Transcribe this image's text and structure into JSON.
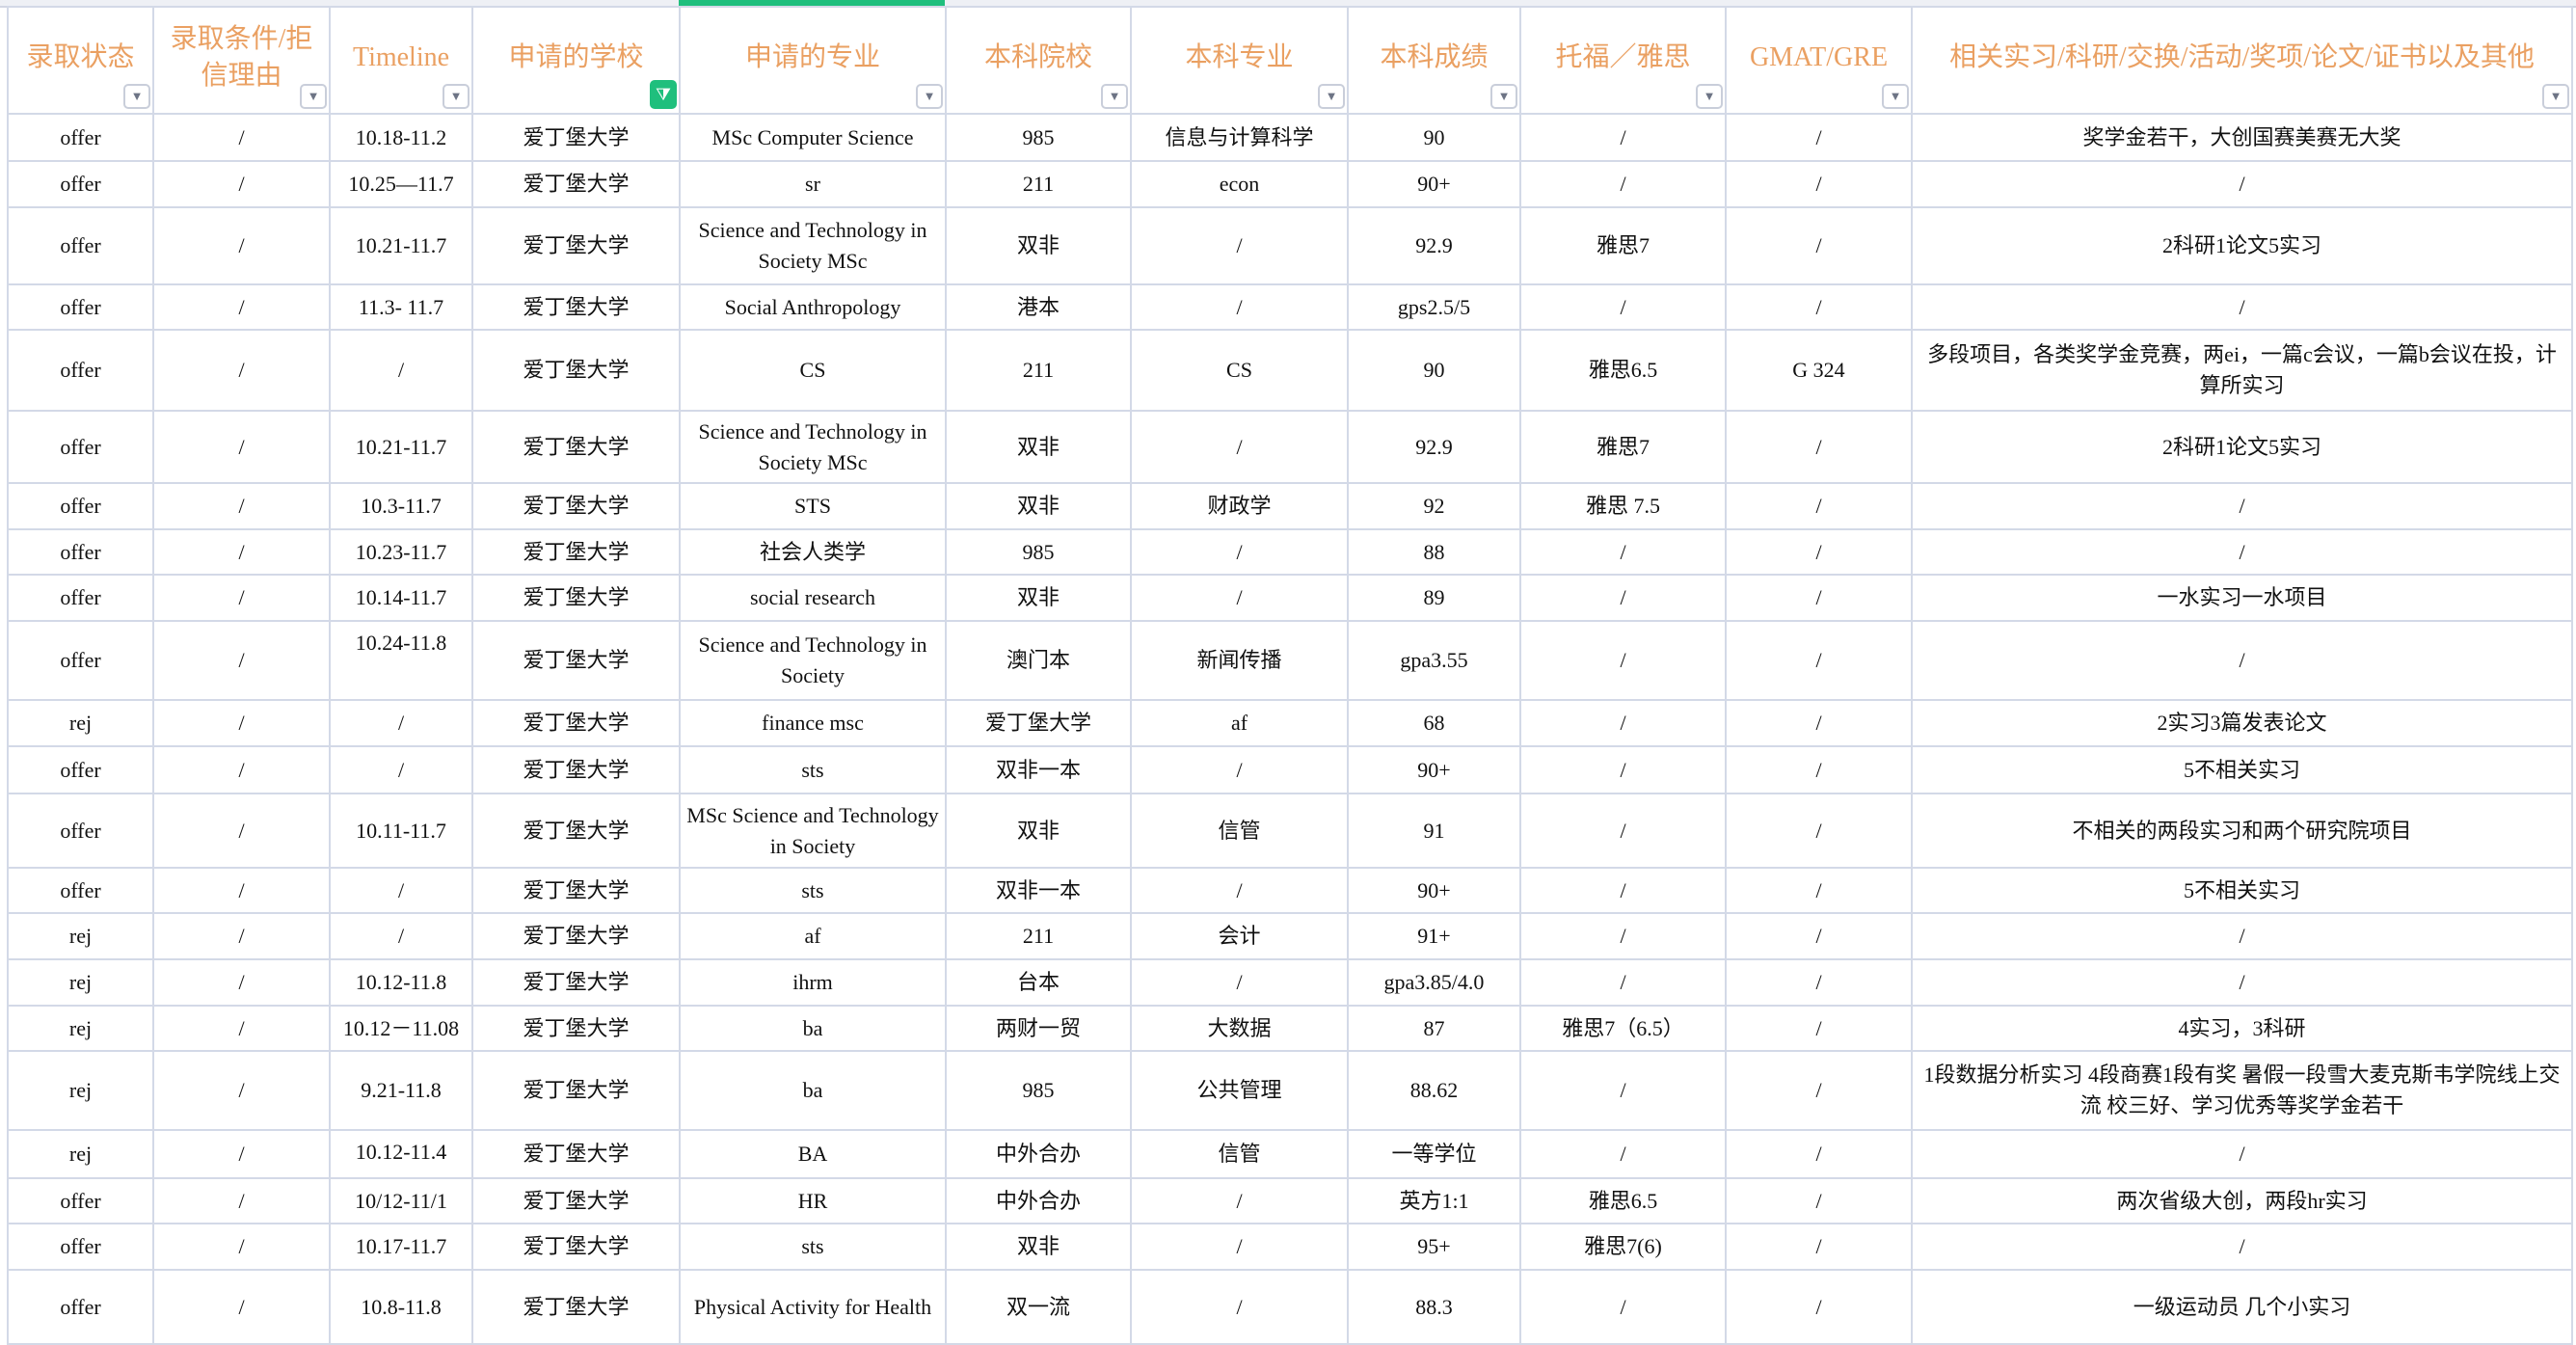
{
  "colors": {
    "header_text": "#eaa062",
    "active_filter": "#1fbf7d",
    "grid": "#d3d9e7",
    "selected_column": "#1fbf7d"
  },
  "columns": [
    {
      "label": "录取状态",
      "filter_icon": "dropdown-arrow-icon",
      "filter_active": false
    },
    {
      "label": "录取条件/拒信理由",
      "filter_icon": "dropdown-arrow-icon",
      "filter_active": false
    },
    {
      "label": "Timeline",
      "filter_icon": "dropdown-arrow-icon",
      "filter_active": false
    },
    {
      "label": "申请的学校",
      "filter_icon": "funnel-icon",
      "filter_active": true
    },
    {
      "label": "申请的专业",
      "filter_icon": "dropdown-arrow-icon",
      "filter_active": false
    },
    {
      "label": "本科院校",
      "filter_icon": "dropdown-arrow-icon",
      "filter_active": false
    },
    {
      "label": "本科专业",
      "filter_icon": "dropdown-arrow-icon",
      "filter_active": false
    },
    {
      "label": "本科成绩",
      "filter_icon": "dropdown-arrow-icon",
      "filter_active": false
    },
    {
      "label": "托福／雅思",
      "filter_icon": "dropdown-arrow-icon",
      "filter_active": false
    },
    {
      "label": "GMAT/GRE",
      "filter_icon": "dropdown-arrow-icon",
      "filter_active": false
    },
    {
      "label": "相关实习/科研/交换/活动/奖项/论文/证书以及其他",
      "filter_icon": "dropdown-arrow-icon",
      "filter_active": false
    }
  ],
  "rows": [
    [
      "offer",
      "/",
      "10.18-11.2",
      "爱丁堡大学",
      "MSc Computer Science",
      "985",
      "信息与计算科学",
      "90",
      "/",
      "/",
      "奖学金若干，大创国赛美赛无大奖"
    ],
    [
      "offer",
      "/",
      "10.25—11.7",
      "爱丁堡大学",
      "sr",
      "211",
      "econ",
      "90+",
      "/",
      "/",
      "/"
    ],
    [
      "offer",
      "/",
      "10.21-11.7",
      "爱丁堡大学",
      "Science and Technology in Society MSc",
      "双非",
      "/",
      "92.9",
      "雅思7",
      "/",
      "2科研1论文5实习"
    ],
    [
      "offer",
      "/",
      "11.3- 11.7",
      "爱丁堡大学",
      "Social Anthropology",
      "港本",
      "/",
      "gps2.5/5",
      "/",
      "/",
      "/"
    ],
    [
      "offer",
      "/",
      "/",
      "爱丁堡大学",
      "CS",
      "211",
      "CS",
      "90",
      "雅思6.5",
      "G 324",
      "多段项目，各类奖学金竞赛，两ei，一篇c会议，一篇b会议在投，计算所实习"
    ],
    [
      "offer",
      "/",
      "10.21-11.7",
      "爱丁堡大学",
      "Science and Technology in Society MSc",
      "双非",
      "/",
      "92.9",
      "雅思7",
      "/",
      "2科研1论文5实习"
    ],
    [
      "offer",
      "/",
      "10.3-11.7",
      "爱丁堡大学",
      "STS",
      "双非",
      "财政学",
      "92",
      "雅思 7.5",
      "/",
      "/"
    ],
    [
      "offer",
      "/",
      "10.23-11.7",
      "爱丁堡大学",
      "社会人类学",
      "985",
      "/",
      "88",
      "/",
      "/",
      "/"
    ],
    [
      "offer",
      "/",
      "10.14-11.7",
      "爱丁堡大学",
      "social research",
      "双非",
      "/",
      "89",
      "/",
      "/",
      "一水实习一水项目"
    ],
    [
      "offer",
      "/",
      "10.24-11.8",
      "爱丁堡大学",
      "Science and Technology in Society",
      "澳门本",
      "新闻传播",
      "gpa3.55",
      "/",
      "/",
      "/"
    ],
    [
      "rej",
      "/",
      "/",
      "爱丁堡大学",
      "finance msc",
      "爱丁堡大学",
      "af",
      "68",
      "/",
      "/",
      "2实习3篇发表论文"
    ],
    [
      "offer",
      "/",
      "/",
      "爱丁堡大学",
      "sts",
      "双非一本",
      "/",
      "90+",
      "/",
      "/",
      "5不相关实习"
    ],
    [
      "offer",
      "/",
      "10.11-11.7",
      "爱丁堡大学",
      "MSc Science and Technology in Society",
      "双非",
      "信管",
      "91",
      "/",
      "/",
      "不相关的两段实习和两个研究院项目"
    ],
    [
      "offer",
      "/",
      "/",
      "爱丁堡大学",
      "sts",
      "双非一本",
      "/",
      "90+",
      "/",
      "/",
      "5不相关实习"
    ],
    [
      "rej",
      "/",
      "/",
      "爱丁堡大学",
      "af",
      "211",
      "会计",
      "91+",
      "/",
      "/",
      "/"
    ],
    [
      "rej",
      "/",
      "10.12-11.8",
      "爱丁堡大学",
      "ihrm",
      "台本",
      "/",
      "gpa3.85/4.0",
      "/",
      "/",
      "/"
    ],
    [
      "rej",
      "/",
      "10.12－11.08",
      "爱丁堡大学",
      "ba",
      "两财一贸",
      "大数据",
      "87",
      "雅思7（6.5）",
      "/",
      "4实习，3科研"
    ],
    [
      "rej",
      "/",
      "9.21-11.8",
      "爱丁堡大学",
      "ba",
      "985",
      "公共管理",
      "88.62",
      "/",
      "/",
      "1段数据分析实习 4段商赛1段有奖  暑假一段雪大麦克斯韦学院线上交流 校三好、学习优秀等奖学金若干"
    ],
    [
      "rej",
      "/",
      "10.12-11.4",
      "爱丁堡大学",
      "BA",
      "中外合办",
      "信管",
      "一等学位",
      "/",
      "/",
      "/"
    ],
    [
      "offer",
      "/",
      "10/12-11/1",
      "爱丁堡大学",
      "HR",
      "中外合办",
      "/",
      "英方1:1",
      "雅思6.5",
      "/",
      "两次省级大创，两段hr实习"
    ],
    [
      "offer",
      "/",
      "10.17-11.7",
      "爱丁堡大学",
      "sts",
      "双非",
      "/",
      "95+",
      "雅思7(6)",
      "/",
      "/"
    ],
    [
      "offer",
      "/",
      "10.8-11.8",
      "爱丁堡大学",
      "Physical Activity for Health",
      "双一流",
      "/",
      "88.3",
      "/",
      "/",
      "一级运动员 几个小实习"
    ]
  ]
}
